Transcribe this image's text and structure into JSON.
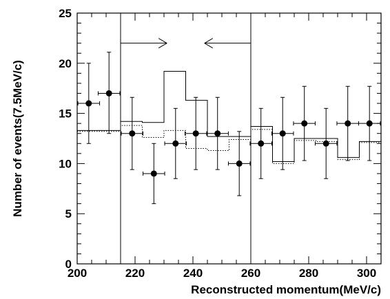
{
  "chart_data": {
    "type": "histogram",
    "title": "",
    "xlabel": "Reconstructed momentum(MeV/c)",
    "ylabel": "Number of events(7.5MeV/c)",
    "xlim": [
      200,
      305
    ],
    "ylim": [
      0,
      25
    ],
    "x_ticks": [
      200,
      220,
      240,
      260,
      280,
      300
    ],
    "y_ticks": [
      0,
      5,
      10,
      15,
      20,
      25
    ],
    "grid": false,
    "signal_window": {
      "x": [
        215,
        260
      ]
    },
    "arrows": [
      {
        "from": 215,
        "to": 231,
        "y": 22,
        "direction": "right"
      },
      {
        "from": 260,
        "to": 244,
        "y": 22,
        "direction": "left"
      }
    ],
    "series": [
      {
        "style": "points-with-errors",
        "points": [
          {
            "x": 204.0,
            "y": 16,
            "xerr": 3.75,
            "ylo": 12.0,
            "yhi": 20.0
          },
          {
            "x": 211.0,
            "y": 17,
            "xerr": 3.75,
            "ylo": 13.0,
            "yhi": 21.1
          },
          {
            "x": 219.0,
            "y": 13,
            "xerr": 3.75,
            "ylo": 9.4,
            "yhi": 16.6
          },
          {
            "x": 226.5,
            "y": 9,
            "xerr": 3.75,
            "ylo": 6.0,
            "yhi": 12.0
          },
          {
            "x": 234.0,
            "y": 12,
            "xerr": 3.75,
            "ylo": 8.5,
            "yhi": 15.5
          },
          {
            "x": 241.0,
            "y": 13,
            "xerr": 3.75,
            "ylo": 9.4,
            "yhi": 16.6
          },
          {
            "x": 248.5,
            "y": 13,
            "xerr": 3.75,
            "ylo": 9.4,
            "yhi": 16.6
          },
          {
            "x": 256.0,
            "y": 10,
            "xerr": 3.75,
            "ylo": 6.8,
            "yhi": 13.2
          },
          {
            "x": 263.5,
            "y": 12,
            "xerr": 3.75,
            "ylo": 8.5,
            "yhi": 15.5
          },
          {
            "x": 271.0,
            "y": 13,
            "xerr": 3.75,
            "ylo": 9.4,
            "yhi": 16.6
          },
          {
            "x": 278.5,
            "y": 14,
            "xerr": 3.75,
            "ylo": 10.3,
            "yhi": 17.7
          },
          {
            "x": 286.0,
            "y": 12,
            "xerr": 3.75,
            "ylo": 8.5,
            "yhi": 15.5
          },
          {
            "x": 293.5,
            "y": 14,
            "xerr": 3.75,
            "ylo": 10.3,
            "yhi": 17.7
          },
          {
            "x": 301.0,
            "y": 14,
            "xerr": 3.75,
            "ylo": 10.3,
            "yhi": 17.7
          }
        ]
      },
      {
        "style": "solid-step",
        "edges": [
          200,
          215,
          222.5,
          230,
          237.5,
          245,
          252.5,
          260,
          267.5,
          275,
          282.5,
          290,
          297.5,
          305
        ],
        "values": [
          13.3,
          14.2,
          14.1,
          19.2,
          16.3,
          12.7,
          12.7,
          13.7,
          10.2,
          12.5,
          12.5,
          10.6,
          12.2
        ]
      },
      {
        "style": "dotted-step",
        "edges": [
          200,
          215,
          222.5,
          230,
          237.5,
          245,
          252.5,
          260,
          267.5,
          275,
          282.5,
          290,
          297.5,
          305
        ],
        "values": [
          13.2,
          13.8,
          12.6,
          13.3,
          11.5,
          11.3,
          12.4,
          13.4,
          10.0,
          12.3,
          12.2,
          10.4,
          12.1
        ]
      }
    ]
  }
}
